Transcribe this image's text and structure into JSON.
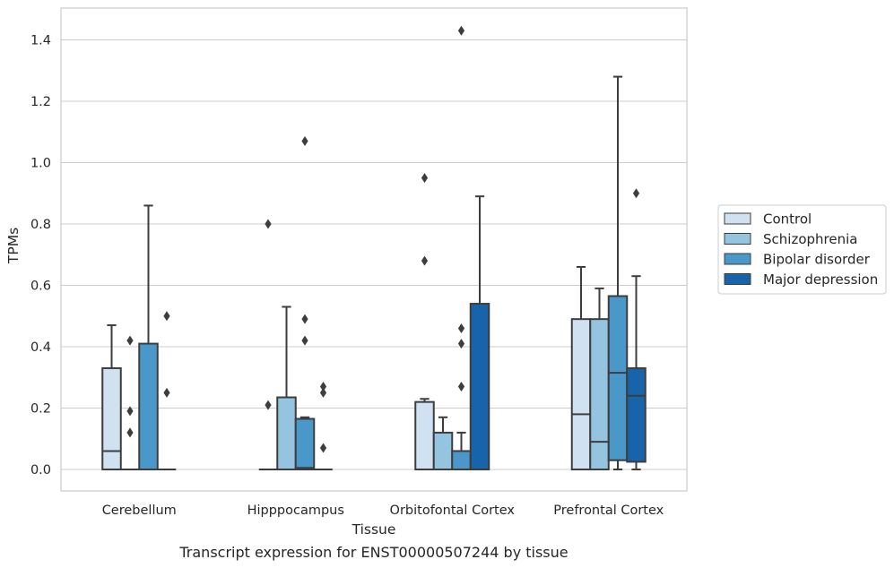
{
  "caption": "Transcript expression for ENST00000507244 by tissue",
  "chart_data": {
    "type": "box",
    "xlabel": "Tissue",
    "ylabel": "TPMs",
    "ylim": [
      -0.07,
      1.5
    ],
    "yticks": [
      "0.0",
      "0.2",
      "0.4",
      "0.6",
      "0.8",
      "1.0",
      "1.2",
      "1.4"
    ],
    "grid": true,
    "legend_position": "right",
    "categories": [
      "Cerebellum",
      "Hipppocampus",
      "Orbitofontal Cortex",
      "Prefrontal Cortex"
    ],
    "series": [
      {
        "name": "Control",
        "color": "#d0e1f2",
        "boxes": [
          {
            "q1": 0.0,
            "median": 0.06,
            "q3": 0.33,
            "whislo": 0.0,
            "whishi": 0.47,
            "fliers": []
          },
          {
            "q1": 0.0,
            "median": 0.0,
            "q3": 0.0,
            "whislo": 0.0,
            "whishi": 0.0,
            "fliers": [
              0.21,
              0.8
            ]
          },
          {
            "q1": 0.0,
            "median": 0.0,
            "q3": 0.22,
            "whislo": 0.0,
            "whishi": 0.23,
            "fliers": [
              0.68,
              0.95
            ]
          },
          {
            "q1": 0.0,
            "median": 0.18,
            "q3": 0.49,
            "whislo": 0.0,
            "whishi": 0.66,
            "fliers": []
          }
        ]
      },
      {
        "name": "Schizophrenia",
        "color": "#94c4df",
        "boxes": [
          {
            "q1": 0.0,
            "median": 0.0,
            "q3": 0.0,
            "whislo": 0.0,
            "whishi": 0.0,
            "fliers": [
              0.12,
              0.19,
              0.42
            ]
          },
          {
            "q1": 0.0,
            "median": 0.0,
            "q3": 0.235,
            "whislo": 0.0,
            "whishi": 0.53,
            "fliers": []
          },
          {
            "q1": 0.0,
            "median": 0.0,
            "q3": 0.12,
            "whislo": 0.0,
            "whishi": 0.17,
            "fliers": []
          },
          {
            "q1": 0.0,
            "median": 0.09,
            "q3": 0.49,
            "whislo": 0.0,
            "whishi": 0.59,
            "fliers": []
          }
        ]
      },
      {
        "name": "Bipolar disorder",
        "color": "#4a98c9",
        "boxes": [
          {
            "q1": 0.0,
            "median": 0.0,
            "q3": 0.41,
            "whislo": 0.0,
            "whishi": 0.86,
            "fliers": []
          },
          {
            "q1": 0.0,
            "median": 0.005,
            "q3": 0.165,
            "whislo": 0.0,
            "whishi": 0.17,
            "fliers": [
              0.42,
              0.49,
              1.07
            ]
          },
          {
            "q1": 0.0,
            "median": 0.0,
            "q3": 0.06,
            "whislo": 0.0,
            "whishi": 0.12,
            "fliers": [
              0.27,
              0.41,
              0.46,
              1.43
            ]
          },
          {
            "q1": 0.03,
            "median": 0.315,
            "q3": 0.565,
            "whislo": 0.0,
            "whishi": 1.28,
            "fliers": []
          }
        ]
      },
      {
        "name": "Major depression",
        "color": "#1764ab",
        "boxes": [
          {
            "q1": 0.0,
            "median": 0.0,
            "q3": 0.0,
            "whislo": 0.0,
            "whishi": 0.0,
            "fliers": [
              0.25,
              0.5
            ]
          },
          {
            "q1": 0.0,
            "median": 0.0,
            "q3": 0.0,
            "whislo": 0.0,
            "whishi": 0.0,
            "fliers": [
              0.07,
              0.25,
              0.27
            ]
          },
          {
            "q1": 0.0,
            "median": 0.0,
            "q3": 0.54,
            "whislo": 0.0,
            "whishi": 0.89,
            "fliers": []
          },
          {
            "q1": 0.025,
            "median": 0.24,
            "q3": 0.33,
            "whislo": 0.0,
            "whishi": 0.63,
            "fliers": [
              0.9
            ]
          }
        ]
      }
    ]
  }
}
